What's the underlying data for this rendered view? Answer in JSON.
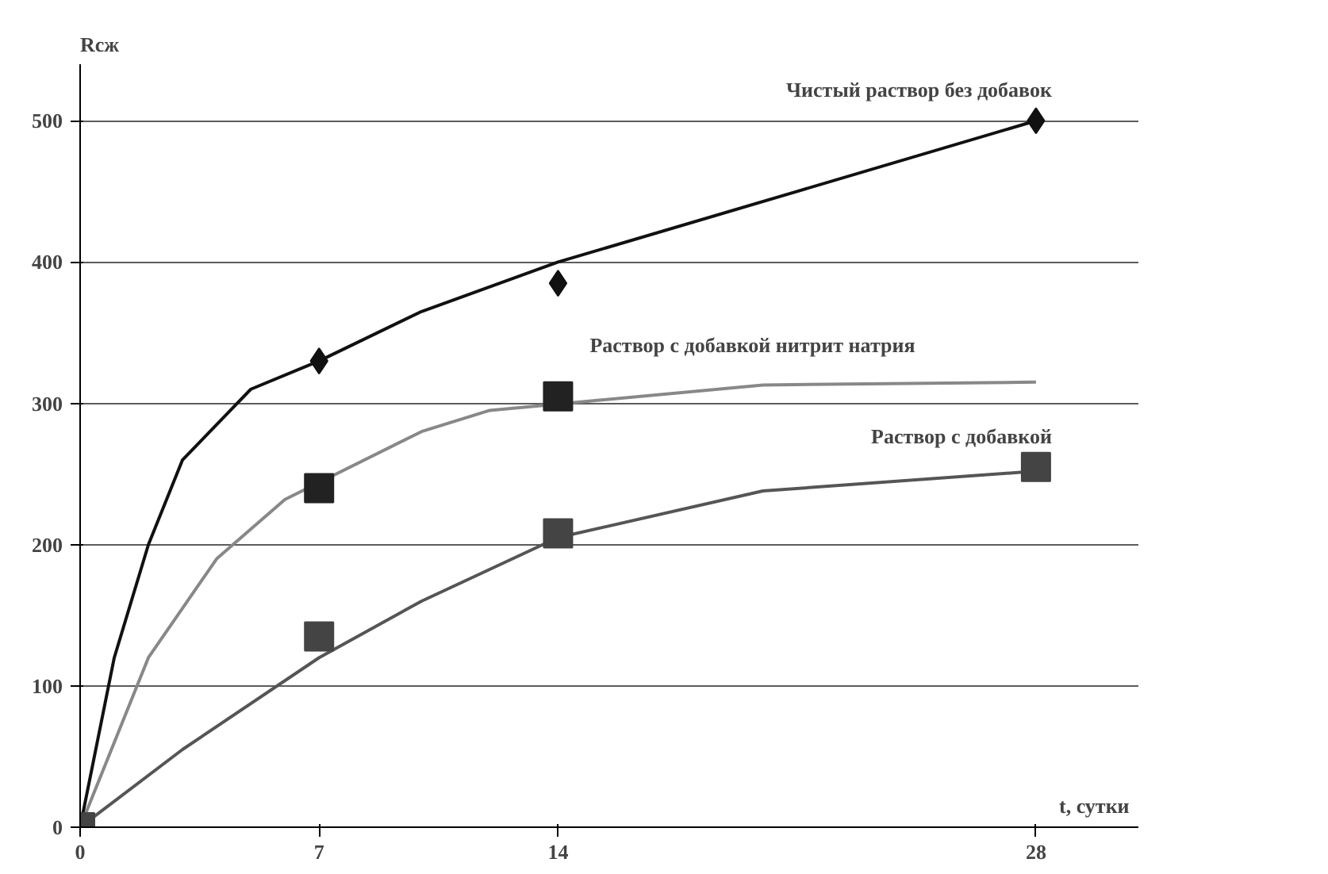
{
  "chart_data": {
    "type": "line",
    "xlabel": "t, сутки",
    "ylabel": "Rсж",
    "xlim": [
      0,
      31
    ],
    "ylim": [
      0,
      540
    ],
    "xticks": [
      0,
      7,
      14,
      28
    ],
    "yticks": [
      0,
      100,
      200,
      300,
      400,
      500
    ],
    "grid": "y",
    "series": [
      {
        "color": "#111111",
        "x": [
          0,
          1,
          2,
          3,
          5,
          7,
          10,
          14,
          21,
          28
        ],
        "values": [
          0,
          120,
          200,
          260,
          310,
          330,
          365,
          400,
          450,
          500
        ]
      },
      {
        "type": "scatter",
        "name": "Чистый раствор без добавок",
        "marker": "diamond",
        "color": "#111111",
        "x": [
          7,
          14,
          28
        ],
        "values": [
          330,
          385,
          500
        ]
      },
      {
        "color": "#888888",
        "x": [
          0,
          2,
          4,
          6,
          10,
          12,
          20,
          28
        ],
        "values": [
          0,
          120,
          190,
          232,
          280,
          295,
          313,
          315
        ]
      },
      {
        "type": "scatter",
        "name": "Раствор с добавкой нитрит натрия",
        "marker": "square",
        "color": "#222222",
        "x": [
          7,
          14
        ],
        "values": [
          240,
          305
        ]
      },
      {
        "color": "#555555",
        "x": [
          0,
          3,
          7,
          10,
          14,
          20,
          28
        ],
        "values": [
          0,
          55,
          120,
          160,
          205,
          238,
          252
        ]
      },
      {
        "type": "scatter",
        "name": "Раствор с добавкой",
        "marker": "square",
        "color": "#444444",
        "x": [
          0,
          7,
          14,
          28
        ],
        "values": [
          0,
          135,
          208,
          255
        ]
      }
    ]
  }
}
